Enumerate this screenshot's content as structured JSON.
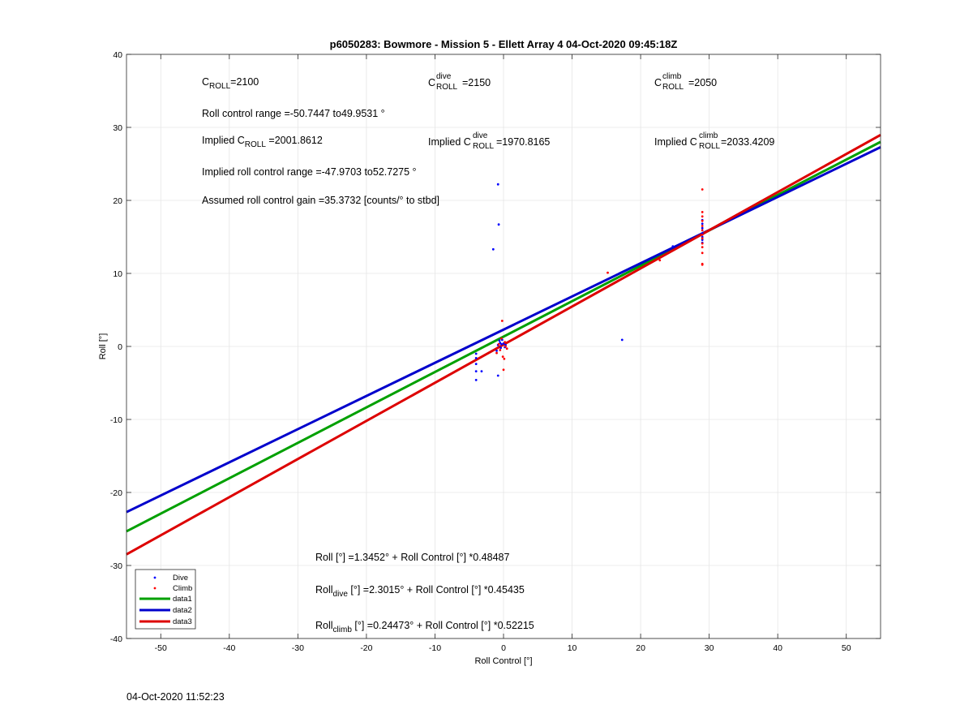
{
  "chart_data": {
    "type": "scatter",
    "title": "p6050283: Bowmore - Mission 5 - Ellett Array 4 04-Oct-2020 09:45:18Z",
    "xlabel": "Roll Control [°]",
    "ylabel": "Roll [°]",
    "xlim": [
      -55,
      55
    ],
    "ylim": [
      -40,
      40
    ],
    "xticks": [
      -50,
      -40,
      -30,
      -20,
      -10,
      0,
      10,
      20,
      30,
      40,
      50
    ],
    "yticks": [
      -40,
      -30,
      -20,
      -10,
      0,
      10,
      20,
      30,
      40
    ],
    "grid": true,
    "legend_position": "bottom-left",
    "series": [
      {
        "name": "Dive",
        "kind": "points",
        "color": "#0000ff",
        "points": [
          [
            -4,
            -4.6
          ],
          [
            -4,
            -3.4
          ],
          [
            -4,
            -2.4
          ],
          [
            -4,
            -1.6
          ],
          [
            -4,
            -1.0
          ],
          [
            -3.2,
            -3.4
          ],
          [
            -1.5,
            13.3
          ],
          [
            -0.8,
            22.2
          ],
          [
            -0.7,
            16.7
          ],
          [
            -0.8,
            -4.0
          ],
          [
            -1,
            -0.6
          ],
          [
            -0.8,
            0.2
          ],
          [
            -0.6,
            0.8
          ],
          [
            -0.5,
            0.5
          ],
          [
            -0.4,
            -0.2
          ],
          [
            -0.3,
            0.3
          ],
          [
            -0.2,
            0.9
          ],
          [
            0,
            0.4
          ],
          [
            0.2,
            -0.1
          ],
          [
            0.3,
            0.2
          ],
          [
            17.3,
            0.9
          ],
          [
            24.7,
            13.7
          ],
          [
            29,
            15.0
          ],
          [
            29,
            15.5
          ],
          [
            29,
            16.2
          ],
          [
            29,
            16.8
          ],
          [
            29,
            17.3
          ],
          [
            29,
            14.6
          ],
          [
            29,
            14.2
          ]
        ]
      },
      {
        "name": "Climb",
        "kind": "points",
        "color": "#ff0000",
        "points": [
          [
            -1,
            -0.9
          ],
          [
            -0.7,
            0.3
          ],
          [
            -0.5,
            -0.5
          ],
          [
            -0.3,
            1.1
          ],
          [
            -0.2,
            3.5
          ],
          [
            -0.1,
            -1.4
          ],
          [
            0,
            -3.2
          ],
          [
            0.1,
            -1.7
          ],
          [
            0.2,
            0.6
          ],
          [
            0.3,
            0.0
          ],
          [
            0.5,
            -0.3
          ],
          [
            15.2,
            10.1
          ],
          [
            22.8,
            11.8
          ],
          [
            29,
            11.2
          ],
          [
            29,
            11.3
          ],
          [
            29,
            12.8
          ],
          [
            29,
            13.6
          ],
          [
            29,
            14.1
          ],
          [
            29,
            14.8
          ],
          [
            29,
            15.3
          ],
          [
            29,
            15.9
          ],
          [
            29,
            16.5
          ],
          [
            29,
            17.2
          ],
          [
            29,
            17.8
          ],
          [
            29,
            18.4
          ],
          [
            29,
            21.5
          ]
        ]
      },
      {
        "name": "data1",
        "kind": "line",
        "color": "#00a000",
        "intercept": 1.3452,
        "slope": 0.48487
      },
      {
        "name": "data2",
        "kind": "line",
        "color": "#0000cc",
        "intercept": 2.3015,
        "slope": 0.45435
      },
      {
        "name": "data3",
        "kind": "line",
        "color": "#dd0000",
        "intercept": 0.24473,
        "slope": 0.52215
      }
    ],
    "annotations": {
      "c_roll": {
        "base": "C",
        "sub": "ROLL",
        "value": "=2100"
      },
      "c_roll_dive": {
        "base": "C",
        "sup": "dive",
        "sub": "ROLL",
        "value": "=2150"
      },
      "c_roll_climb": {
        "base": "C",
        "sup": "climb",
        "sub": "ROLL",
        "value": "=2050"
      },
      "roll_control_range": "Roll control range =-50.7447 to49.9531 °",
      "implied_c_roll": {
        "prefix": "Implied C",
        "sub": "ROLL",
        "value": " =2001.8612"
      },
      "implied_c_roll_dive": {
        "prefix": "Implied C",
        "sup": "dive",
        "sub": "ROLL",
        "value": "=1970.8165"
      },
      "implied_c_roll_climb": {
        "prefix": "Implied C",
        "sup": "climb",
        "sub": "ROLL",
        "value": " =2033.4209"
      },
      "implied_range": "Implied roll control range =-47.9703 to52.7275 °",
      "gain": "Assumed roll control gain =35.3732 [counts/° to stbd]",
      "eq_all": "Roll [°] =1.3452° + Roll Control [°] *0.48487",
      "eq_dive": {
        "base": "Roll",
        "sub": "dive",
        "rest": " [°] =2.3015° + Roll Control [°] *0.45435"
      },
      "eq_climb": {
        "base": "Roll",
        "sub": "climb",
        "rest": " [°] =0.24473° + Roll Control [°] *0.52215"
      }
    }
  },
  "footer_timestamp": "04-Oct-2020 11:52:23"
}
